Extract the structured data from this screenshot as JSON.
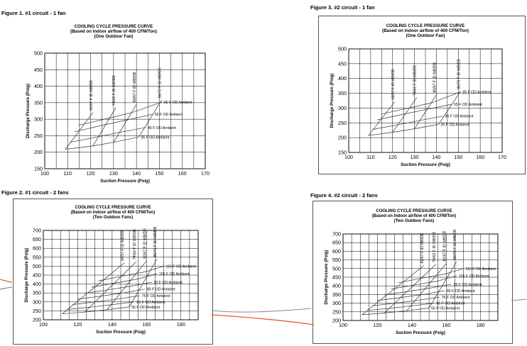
{
  "figures": [
    {
      "caption": "Figure 1.    #1 circuit - 1 fan"
    },
    {
      "caption": "Figure 3.    #2 circuit - 1 fan"
    },
    {
      "caption": "Figure 2.    #1 circuit - 2 fans"
    },
    {
      "caption": "Figure 4.    #2 circuit - 2 fans"
    }
  ],
  "colors": {
    "grid": "#000000",
    "curve": "#555555",
    "accent_line": "#e0602a",
    "gray_line": "#8a8a8a"
  },
  "chart_data": [
    {
      "type": "line",
      "title": "COOLING CYCLE PRESSURE CURVE",
      "subtitle1": "(Based on Indoor airflow of 400 CFM/Ton)",
      "subtitle2": "(One Outdoor Fan)",
      "xlabel": "Suction Pressure (Psig)",
      "ylabel": "Discharge Pressure (Psig)",
      "xlim": [
        100,
        170
      ],
      "ylim": [
        150,
        500
      ],
      "xticks": [
        100,
        110,
        120,
        130,
        140,
        150,
        160,
        170
      ],
      "yticks": [
        150,
        200,
        250,
        300,
        350,
        400,
        450,
        500
      ],
      "xminor": 5,
      "yminor": 50,
      "grid": true,
      "ambient": [
        {
          "name": "35 F OD Ambient",
          "points": [
            [
              109,
              209
            ],
            [
              121,
              219
            ],
            [
              130,
              230
            ],
            [
              141,
              246
            ]
          ]
        },
        {
          "name": "45 F OD Ambient",
          "points": [
            [
              111,
              230
            ],
            [
              122,
              245
            ],
            [
              131,
              258
            ],
            [
              144,
              275
            ]
          ]
        },
        {
          "name": "55 F OD Ambient",
          "points": [
            [
              113,
              262
            ],
            [
              124,
              280
            ],
            [
              134,
              295
            ],
            [
              147,
              315
            ]
          ]
        },
        {
          "name": "65 F OD Ambient",
          "points": [
            [
              115,
              282
            ],
            [
              126,
              300
            ],
            [
              138,
              320
            ],
            [
              151,
              352
            ]
          ]
        }
      ],
      "indoor": [
        {
          "name": "66/57 F ID WB/DB",
          "points": [
            [
              109,
              209
            ],
            [
              121,
              320
            ]
          ]
        },
        {
          "name": "74/62 F ID WB/DB",
          "points": [
            [
              121,
              219
            ],
            [
              131,
              335
            ]
          ]
        },
        {
          "name": "80/67 F ID WB/DB",
          "points": [
            [
              130,
              230
            ],
            [
              140,
              345
            ]
          ]
        },
        {
          "name": "86/72 F ID WB/DB",
          "points": [
            [
              141,
              246
            ],
            [
              151,
              358
            ]
          ]
        }
      ]
    },
    {
      "type": "line",
      "title": "COOLING CYCLE PRESSURE CURVE",
      "subtitle1": "(Based on Indoor airflow of 400 CFM/Ton)",
      "subtitle2": "(One Outdoor Fan)",
      "xlabel": "Suction Pressure (Psig)",
      "ylabel": "Discharge Pressure (Psig)",
      "xlim": [
        100,
        170
      ],
      "ylim": [
        150,
        500
      ],
      "xticks": [
        100,
        110,
        120,
        130,
        140,
        150,
        160,
        170
      ],
      "yticks": [
        150,
        200,
        250,
        300,
        350,
        400,
        450,
        500
      ],
      "xminor": 5,
      "yminor": 50,
      "grid": true,
      "ambient": [
        {
          "name": "35 F OD Ambient",
          "points": [
            [
              109,
              207
            ],
            [
              120,
              218
            ],
            [
              130,
              230
            ],
            [
              141,
              245
            ]
          ]
        },
        {
          "name": "45 F OD Ambient",
          "points": [
            [
              111,
              228
            ],
            [
              122,
              243
            ],
            [
              131,
              256
            ],
            [
              143,
              273
            ]
          ]
        },
        {
          "name": "55 F OD Ambient",
          "points": [
            [
              113,
              260
            ],
            [
              124,
              278
            ],
            [
              134,
              293
            ],
            [
              147,
              313
            ]
          ]
        },
        {
          "name": "65 F OD Ambient",
          "points": [
            [
              115,
              280
            ],
            [
              126,
              298
            ],
            [
              138,
              318
            ],
            [
              151,
              355
            ]
          ]
        }
      ],
      "indoor": [
        {
          "name": "66/57 F ID WB/DB",
          "points": [
            [
              109,
              207
            ],
            [
              121,
              322
            ]
          ]
        },
        {
          "name": "74/62 F ID WB/DB",
          "points": [
            [
              120,
              218
            ],
            [
              131,
              335
            ]
          ]
        },
        {
          "name": "80/67 F ID WB/DB",
          "points": [
            [
              130,
              230
            ],
            [
              140,
              345
            ]
          ]
        },
        {
          "name": "86/72 F ID WB/DB",
          "points": [
            [
              141,
              245
            ],
            [
              151,
              357
            ]
          ]
        }
      ]
    },
    {
      "type": "line",
      "title": "COOLING CYCLE PRESSURE CURVE",
      "subtitle1": "(Based on Indoor airflow of 400 CFM/Ton)",
      "subtitle2": "(Two Outdoor Fans)",
      "xlabel": "Suction Pressure (Psig)",
      "ylabel": "Discharge Pressure (Psig)",
      "xlim": [
        100,
        190
      ],
      "ylim": [
        200,
        700
      ],
      "xticks": [
        100,
        120,
        140,
        160,
        180
      ],
      "yticks": [
        200,
        250,
        300,
        350,
        400,
        450,
        500,
        550,
        600,
        650,
        700
      ],
      "xminor": 5,
      "yminor": 50,
      "grid": true,
      "ambient": [
        {
          "name": "55 F OD Ambient",
          "points": [
            [
              111,
              233
            ],
            [
              124,
              243
            ],
            [
              137,
              256
            ],
            [
              150,
              272
            ]
          ]
        },
        {
          "name": "65 F OD Ambient",
          "points": [
            [
              114,
              258
            ],
            [
              127,
              270
            ],
            [
              140,
              285
            ],
            [
              153,
              300
            ]
          ]
        },
        {
          "name": "75 F OD Ambient",
          "points": [
            [
              117,
              285
            ],
            [
              130,
              300
            ],
            [
              143,
              316
            ],
            [
              156,
              335
            ]
          ]
        },
        {
          "name": "85 F OD Ambient",
          "points": [
            [
              120,
              315
            ],
            [
              134,
              333
            ],
            [
              147,
              351
            ],
            [
              159,
              372
            ]
          ]
        },
        {
          "name": "95 F OD Ambient",
          "points": [
            [
              124,
              348
            ],
            [
              138,
              368
            ],
            [
              151,
              388
            ],
            [
              163,
              410
            ]
          ]
        },
        {
          "name": "105 F OD Ambient",
          "points": [
            [
              128,
              382
            ],
            [
              142,
              406
            ],
            [
              155,
              428
            ],
            [
              166,
              458
            ]
          ]
        },
        {
          "name": "115 F OD Ambient",
          "points": [
            [
              132,
              418
            ],
            [
              146,
              445
            ],
            [
              159,
              468
            ],
            [
              170,
              500
            ]
          ]
        }
      ],
      "indoor": [
        {
          "name": "66/57 F ID WB/DB",
          "points": [
            [
              111,
              233
            ],
            [
              147,
              518
            ]
          ]
        },
        {
          "name": "74/62 F ID WB/DB",
          "points": [
            [
              124,
              243
            ],
            [
              154,
              525
            ]
          ]
        },
        {
          "name": "80/67 F ID WB/DB",
          "points": [
            [
              137,
              256
            ],
            [
              160,
              530
            ]
          ]
        },
        {
          "name": "86/72 F ID WB/DB",
          "points": [
            [
              150,
              272
            ],
            [
              166,
              540
            ]
          ]
        }
      ]
    },
    {
      "type": "line",
      "title": "COOLING CYCLE PRESSURE CURVE",
      "subtitle1": "(Based on Indoor airflow of 400 CFM/Ton)",
      "subtitle2": "(Two Outdoor Fans)",
      "xlabel": "Suction Pressure (Psig)",
      "ylabel": "Discharge Pressure (Psig)",
      "xlim": [
        100,
        190
      ],
      "ylim": [
        200,
        700
      ],
      "xticks": [
        100,
        120,
        140,
        160,
        180
      ],
      "yticks": [
        200,
        250,
        300,
        350,
        400,
        450,
        500,
        550,
        600,
        650,
        700
      ],
      "xminor": 5,
      "yminor": 50,
      "grid": true,
      "ambient": [
        {
          "name": "55 F OD Ambient",
          "points": [
            [
              111,
              233
            ],
            [
              124,
              243
            ],
            [
              137,
              256
            ],
            [
              150,
              272
            ]
          ]
        },
        {
          "name": "65 F OD Ambient",
          "points": [
            [
              114,
              258
            ],
            [
              127,
              270
            ],
            [
              140,
              285
            ],
            [
              153,
              300
            ]
          ]
        },
        {
          "name": "75 F OD Ambient",
          "points": [
            [
              117,
              285
            ],
            [
              130,
              300
            ],
            [
              143,
              316
            ],
            [
              156,
              335
            ]
          ]
        },
        {
          "name": "85 F OD Ambient",
          "points": [
            [
              120,
              315
            ],
            [
              134,
              333
            ],
            [
              147,
              351
            ],
            [
              159,
              372
            ]
          ]
        },
        {
          "name": "95 F OD Ambient",
          "points": [
            [
              124,
              348
            ],
            [
              138,
              368
            ],
            [
              151,
              388
            ],
            [
              163,
              410
            ]
          ]
        },
        {
          "name": "105 F OD Ambient",
          "points": [
            [
              128,
              382
            ],
            [
              142,
              406
            ],
            [
              155,
              428
            ],
            [
              166,
              458
            ]
          ]
        },
        {
          "name": "115 F OD Ambient",
          "points": [
            [
              132,
              418
            ],
            [
              146,
              445
            ],
            [
              159,
              468
            ],
            [
              170,
              500
            ]
          ]
        }
      ],
      "indoor": [
        {
          "name": "66/57 F ID WB/DB",
          "points": [
            [
              111,
              233
            ],
            [
              147,
              518
            ]
          ]
        },
        {
          "name": "74/62 F ID WB/DB",
          "points": [
            [
              124,
              243
            ],
            [
              154,
              525
            ]
          ]
        },
        {
          "name": "80/67 F ID WB/DB",
          "points": [
            [
              137,
              256
            ],
            [
              160,
              530
            ]
          ]
        },
        {
          "name": "86/72 F ID WB/DB",
          "points": [
            [
              150,
              272
            ],
            [
              166,
              540
            ]
          ]
        }
      ]
    }
  ]
}
